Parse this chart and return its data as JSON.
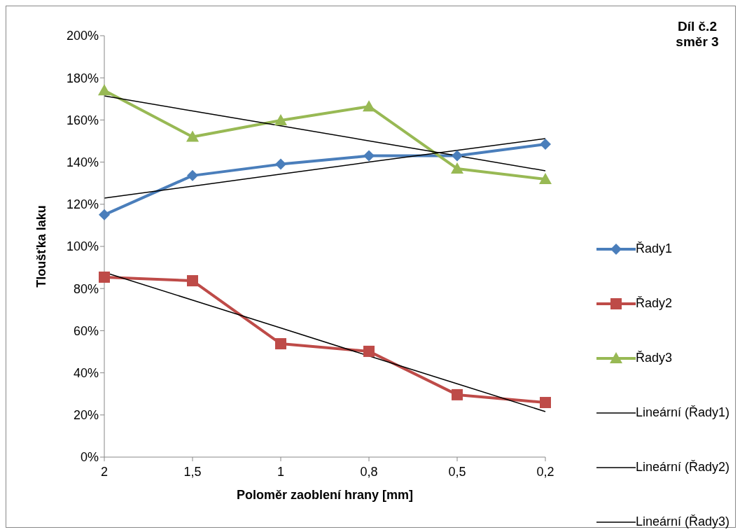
{
  "chart_data": {
    "type": "line",
    "title": "Díl č.2 směr 3",
    "xlabel": "Poloměr zaoblení hrany [mm]",
    "ylabel": "Tloušťka laku",
    "categories": [
      "2",
      "1,5",
      "1",
      "0,8",
      "0,5",
      "0,2"
    ],
    "ylim": [
      0,
      200
    ],
    "yticks": [
      {
        "value": 0,
        "label": "0%"
      },
      {
        "value": 20,
        "label": "20%"
      },
      {
        "value": 40,
        "label": "40%"
      },
      {
        "value": 60,
        "label": "60%"
      },
      {
        "value": 80,
        "label": "80%"
      },
      {
        "value": 100,
        "label": "100%"
      },
      {
        "value": 120,
        "label": "120%"
      },
      {
        "value": 140,
        "label": "140%"
      },
      {
        "value": 160,
        "label": "160%"
      },
      {
        "value": 180,
        "label": "180%"
      },
      {
        "value": 200,
        "label": "200%"
      }
    ],
    "legend": "right",
    "series": [
      {
        "name": "Řady1",
        "color": "#4a7ebb",
        "marker": "diamond",
        "values": [
          115,
          133.6,
          139,
          143,
          143,
          148.5
        ]
      },
      {
        "name": "Řady2",
        "color": "#be4b48",
        "marker": "square",
        "values": [
          85.4,
          83.7,
          53.8,
          50.2,
          29.6,
          25.9
        ]
      },
      {
        "name": "Řady3",
        "color": "#98b954",
        "marker": "triangle",
        "values": [
          174,
          152,
          159.8,
          166.4,
          136.9,
          131.9
        ]
      },
      {
        "name": "Lineární (Řady1)",
        "color": "#000000",
        "marker": "none",
        "values": [
          122.9,
          128.6,
          134.3,
          140,
          145.6,
          151.2
        ]
      },
      {
        "name": "Lineární (Řady2)",
        "color": "#000000",
        "marker": "none",
        "values": [
          87.7,
          74.5,
          61.3,
          48,
          34.8,
          21.6
        ]
      },
      {
        "name": "Lineární (Řady3)",
        "color": "#000000",
        "marker": "none",
        "values": [
          171.4,
          164.3,
          157.2,
          150.1,
          143,
          135.9
        ]
      }
    ]
  }
}
